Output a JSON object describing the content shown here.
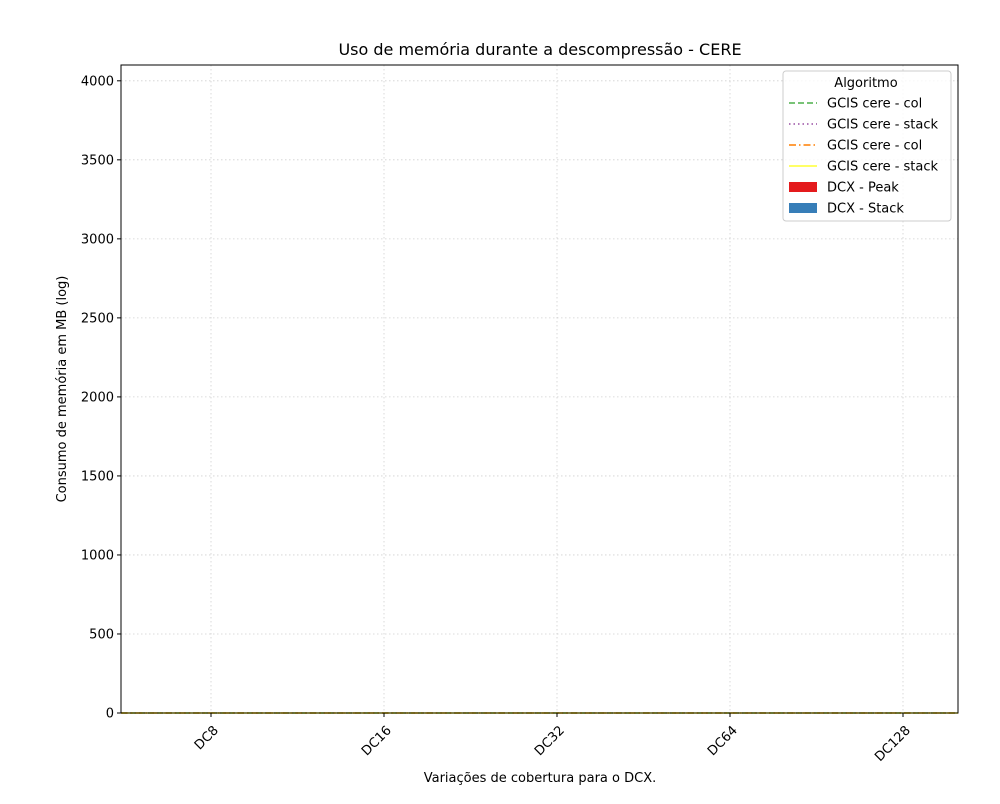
{
  "chart_data": {
    "type": "bar",
    "title": "Uso de memória durante a descompressão -  CERE",
    "xlabel": "Variações de cobertura para o DCX.",
    "ylabel": "Consumo de memória em MB (log)",
    "categories": [
      "DC8",
      "DC16",
      "DC32",
      "DC64",
      "DC128"
    ],
    "ylim": [
      0,
      4100
    ],
    "yticks": [
      0,
      500,
      1000,
      1500,
      2000,
      2500,
      3000,
      3500,
      4000
    ],
    "ytick_labels": [
      "0",
      "500",
      "1000",
      "1500",
      "2000",
      "2500",
      "3000",
      "3500",
      "4000"
    ],
    "grid": true,
    "legend": {
      "title": "Algoritmo",
      "placement": "top-right",
      "entries": [
        {
          "label": "GCIS cere - col",
          "kind": "line",
          "style": "dashed",
          "color": "#4daf4a"
        },
        {
          "label": "GCIS cere - stack",
          "kind": "line",
          "style": "dotted",
          "color": "#984ea3"
        },
        {
          "label": "GCIS cere - col",
          "kind": "line",
          "style": "dashdot",
          "color": "#ff7f00"
        },
        {
          "label": "GCIS cere - stack",
          "kind": "line",
          "style": "solid",
          "color": "#ffff33"
        },
        {
          "label": "DCX - Peak",
          "kind": "patch",
          "color": "#e41a1c"
        },
        {
          "label": "DCX - Stack",
          "kind": "patch",
          "color": "#377eb8"
        }
      ]
    },
    "series": [
      {
        "name": "GCIS cere - col",
        "type": "line",
        "values": [
          0,
          0,
          0,
          0,
          0
        ]
      },
      {
        "name": "GCIS cere - stack",
        "type": "line",
        "values": [
          0,
          0,
          0,
          0,
          0
        ]
      },
      {
        "name": "GCIS cere - col",
        "type": "line",
        "values": [
          0,
          0,
          0,
          0,
          0
        ]
      },
      {
        "name": "GCIS cere - stack",
        "type": "line",
        "values": [
          0,
          0,
          0,
          0,
          0
        ]
      },
      {
        "name": "DCX - Peak",
        "type": "bar",
        "values": [
          0,
          0,
          0,
          0,
          0
        ]
      },
      {
        "name": "DCX - Stack",
        "type": "bar",
        "values": [
          0,
          0,
          0,
          0,
          0
        ]
      }
    ]
  }
}
